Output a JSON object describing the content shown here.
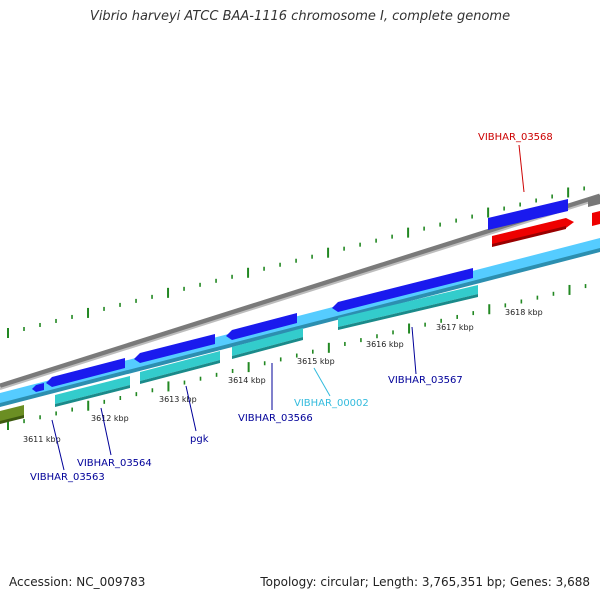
{
  "title": "Vibrio harveyi ATCC BAA-1116 chromosome I, complete genome",
  "footer": {
    "accession": "Accession: NC_009783",
    "summary": "Topology: circular; Length: 3,765,351 bp; Genes: 3,688"
  },
  "ticks": [
    "3611 kbp",
    "3612 kbp",
    "3613 kbp",
    "3614 kbp",
    "3615 kbp",
    "3616 kbp",
    "3617 kbp",
    "3618 kbp"
  ],
  "gene_labels": [
    {
      "text": "VIBHAR_03568",
      "color": "#cc0000"
    },
    {
      "text": "VIBHAR_03567",
      "color": "#000099"
    },
    {
      "text": "VIBHAR_00002",
      "color": "#33bbdd"
    },
    {
      "text": "VIBHAR_03566",
      "color": "#000099"
    },
    {
      "text": "pgk",
      "color": "#000099"
    },
    {
      "text": "VIBHAR_03564",
      "color": "#000099"
    },
    {
      "text": "VIBHAR_03563",
      "color": "#000099"
    }
  ],
  "colors": {
    "backbone": "#8a8a8a",
    "cds_forward": "#1a1aee",
    "cds_reverse": "#ee0000",
    "gene_track": "#33cccc",
    "mrna_track": "#55ccff",
    "misc_feature": "#6b8e23",
    "ticks": "#228822"
  }
}
